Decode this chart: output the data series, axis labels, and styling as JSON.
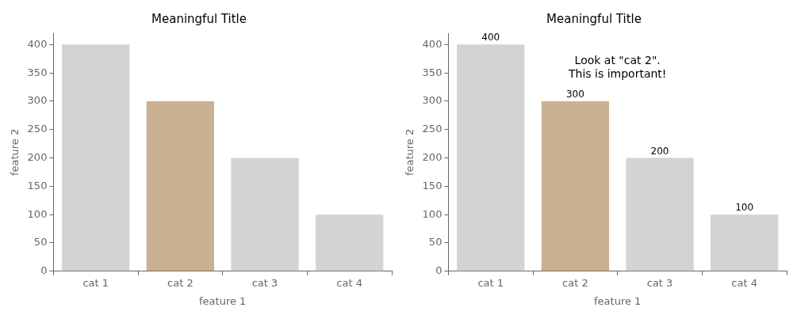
{
  "chart_data": [
    {
      "type": "bar",
      "title": "Meaningful Title",
      "xlabel": "feature 1",
      "ylabel": "feature 2",
      "categories": [
        "cat 1",
        "cat 2",
        "cat 3",
        "cat 4"
      ],
      "values": [
        400,
        300,
        200,
        100
      ],
      "colors": [
        "#d3d3d3",
        "#c9b192",
        "#d3d3d3",
        "#d3d3d3"
      ],
      "ylim": [
        0,
        420
      ],
      "yticks": [
        0,
        50,
        100,
        150,
        200,
        250,
        300,
        350,
        400
      ],
      "grid": false,
      "legend": false
    },
    {
      "type": "bar",
      "title": "Meaningful Title",
      "xlabel": "feature 1",
      "ylabel": "feature 2",
      "categories": [
        "cat 1",
        "cat 2",
        "cat 3",
        "cat 4"
      ],
      "values": [
        400,
        300,
        200,
        100
      ],
      "colors": [
        "#d3d3d3",
        "#c9b192",
        "#d3d3d3",
        "#d3d3d3"
      ],
      "ylim": [
        0,
        420
      ],
      "yticks": [
        0,
        50,
        100,
        150,
        200,
        250,
        300,
        350,
        400
      ],
      "grid": false,
      "legend": false,
      "data_labels": true,
      "annotations": [
        "Look at \"cat 2\".\nThis is important!"
      ]
    }
  ]
}
